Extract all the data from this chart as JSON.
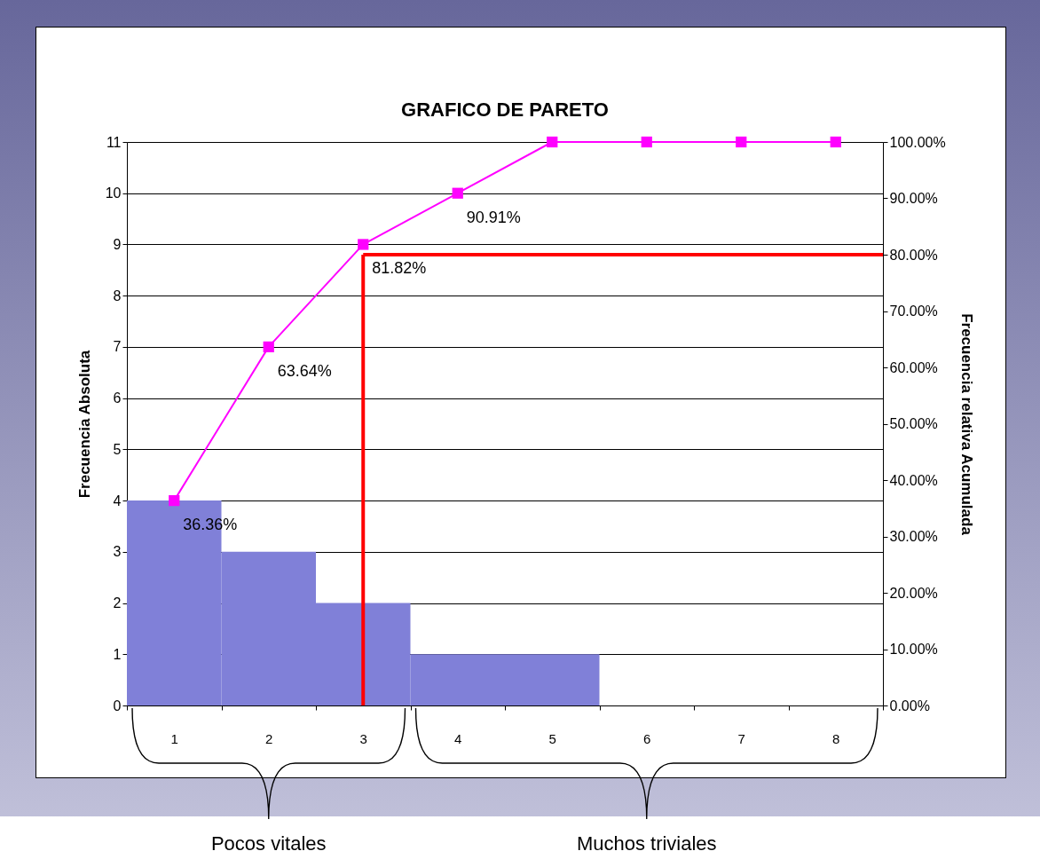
{
  "chart_data": {
    "type": "bar",
    "title": "GRAFICO DE PARETO",
    "ylabel": "Frecuencia Absoluta",
    "y2label": "Frecuencia relativa  Acumulada",
    "categories": [
      "1",
      "2",
      "3",
      "4",
      "5",
      "6",
      "7",
      "8"
    ],
    "series": [
      {
        "color": "#8080d8",
        "values": [
          4,
          3,
          2,
          1,
          1,
          0,
          0,
          0
        ]
      },
      {
        "type": "line",
        "axis": "y2",
        "color": "#ff00ff",
        "marker": "square",
        "values": [
          36.36,
          63.64,
          81.82,
          90.91,
          100,
          100,
          100,
          100
        ],
        "value_labels": [
          "36.36%",
          "63.64%",
          "81.82%",
          "90.91%",
          null,
          null,
          null,
          null
        ]
      }
    ],
    "ylim": [
      0,
      11
    ],
    "yticks": [
      0,
      1,
      2,
      3,
      4,
      5,
      6,
      7,
      8,
      9,
      10,
      11
    ],
    "y2lim": [
      0,
      100
    ],
    "y2ticks": [
      {
        "value": 0,
        "label": "0.00%"
      },
      {
        "value": 10,
        "label": "10.00%"
      },
      {
        "value": 20,
        "label": "20.00%"
      },
      {
        "value": 30,
        "label": "30.00%"
      },
      {
        "value": 40,
        "label": "40.00%"
      },
      {
        "value": 50,
        "label": "50.00%"
      },
      {
        "value": 60,
        "label": "60.00%"
      },
      {
        "value": 70,
        "label": "70.00%"
      },
      {
        "value": 80,
        "label": "80.00%"
      },
      {
        "value": 90,
        "label": "90.00%"
      },
      {
        "value": 100,
        "label": "100.00%"
      }
    ],
    "grid": "y",
    "ref_lines": [
      {
        "axis": "x",
        "value": "3",
        "color": "#ff0000"
      },
      {
        "axis": "y2",
        "value": 80,
        "color": "#ff0000"
      }
    ],
    "annotations": [
      "Pocos vitales",
      "Muchos triviales"
    ]
  }
}
